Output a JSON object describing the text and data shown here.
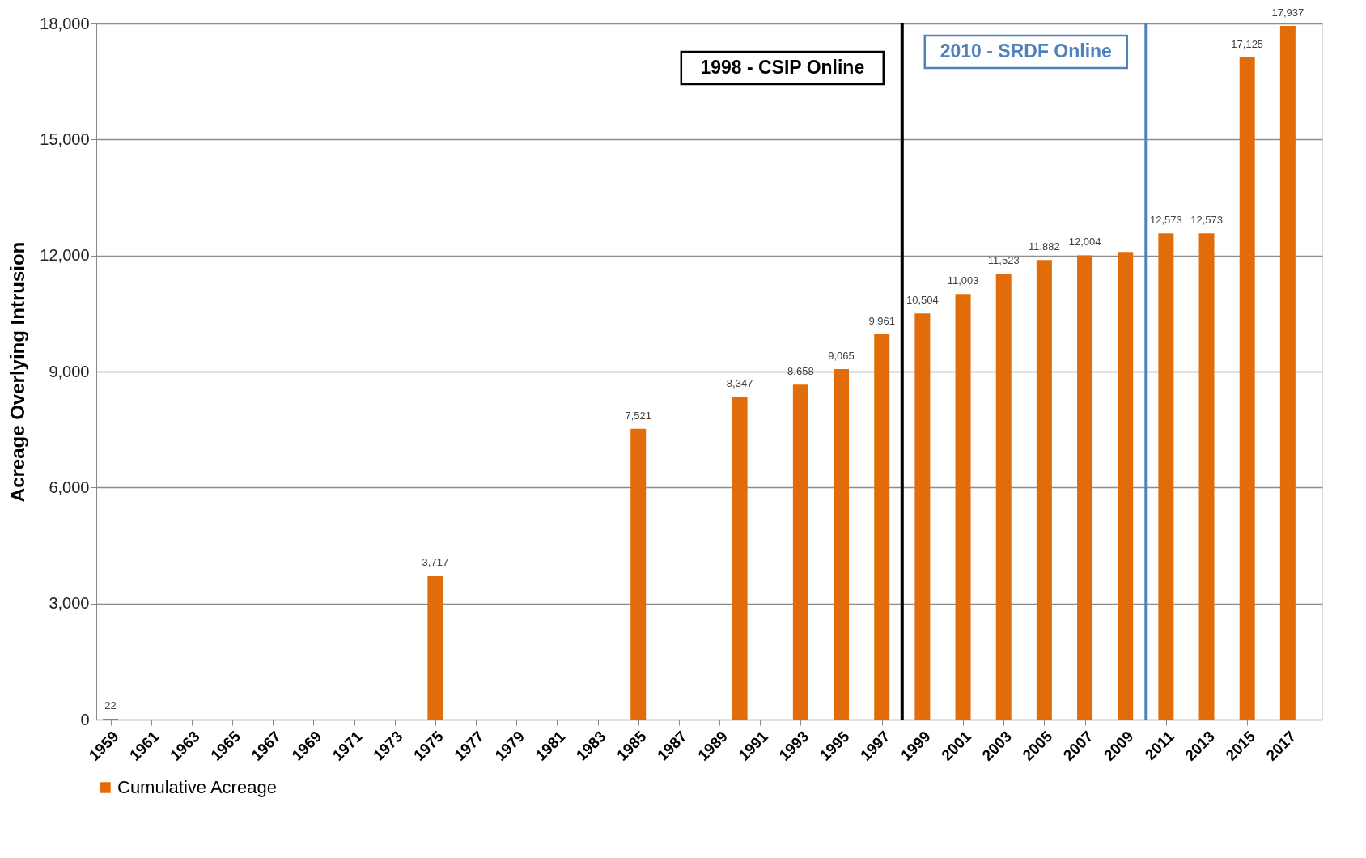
{
  "chart_data": {
    "type": "bar",
    "ylabel": "Acreage Overlying Intrusion",
    "x": [
      1959,
      1975,
      1985,
      1990,
      1993,
      1995,
      1997,
      1999,
      2001,
      2003,
      2005,
      2007,
      2009,
      2011,
      2013,
      2015,
      2017
    ],
    "series": [
      {
        "name": "Cumulative Acreage",
        "color": "#e36c0a",
        "values": [
          22,
          3717,
          7521,
          8347,
          8658,
          9065,
          9961,
          10504,
          11003,
          11523,
          11882,
          12004,
          12090,
          12573,
          12573,
          17125,
          17937
        ],
        "value_labels": [
          "22",
          "3,717",
          "7,521",
          "8,347",
          "8,658",
          "9,065",
          "9,961",
          "10,504",
          "11,003",
          "11,523",
          "11,882",
          "12,004",
          null,
          "12,573",
          "12,573",
          "17,125",
          "17,937"
        ]
      }
    ],
    "xlim": [
      1958.5,
      2018.5
    ],
    "xticks": [
      1959,
      1961,
      1963,
      1965,
      1967,
      1969,
      1971,
      1973,
      1975,
      1977,
      1979,
      1981,
      1983,
      1985,
      1987,
      1989,
      1991,
      1993,
      1995,
      1997,
      1999,
      2001,
      2003,
      2005,
      2007,
      2009,
      2011,
      2013,
      2015,
      2017
    ],
    "ylim": [
      0,
      18000
    ],
    "yticks": [
      {
        "value": 0,
        "label": "0"
      },
      {
        "value": 3000,
        "label": "3,000"
      },
      {
        "value": 6000,
        "label": "6,000"
      },
      {
        "value": 9000,
        "label": "9,000"
      },
      {
        "value": 12000,
        "label": "12,000"
      },
      {
        "value": 15000,
        "label": "15,000"
      },
      {
        "value": 18000,
        "label": "18,000"
      }
    ],
    "ref_lines": [
      {
        "axis": "x",
        "value": 1998,
        "label": "1998 - CSIP Online",
        "color": "#000000"
      },
      {
        "axis": "x",
        "value": 2010,
        "label": "2010 - SRDF Online",
        "color": "#4f81bd"
      }
    ],
    "grid": "y",
    "legend": "bottom"
  }
}
